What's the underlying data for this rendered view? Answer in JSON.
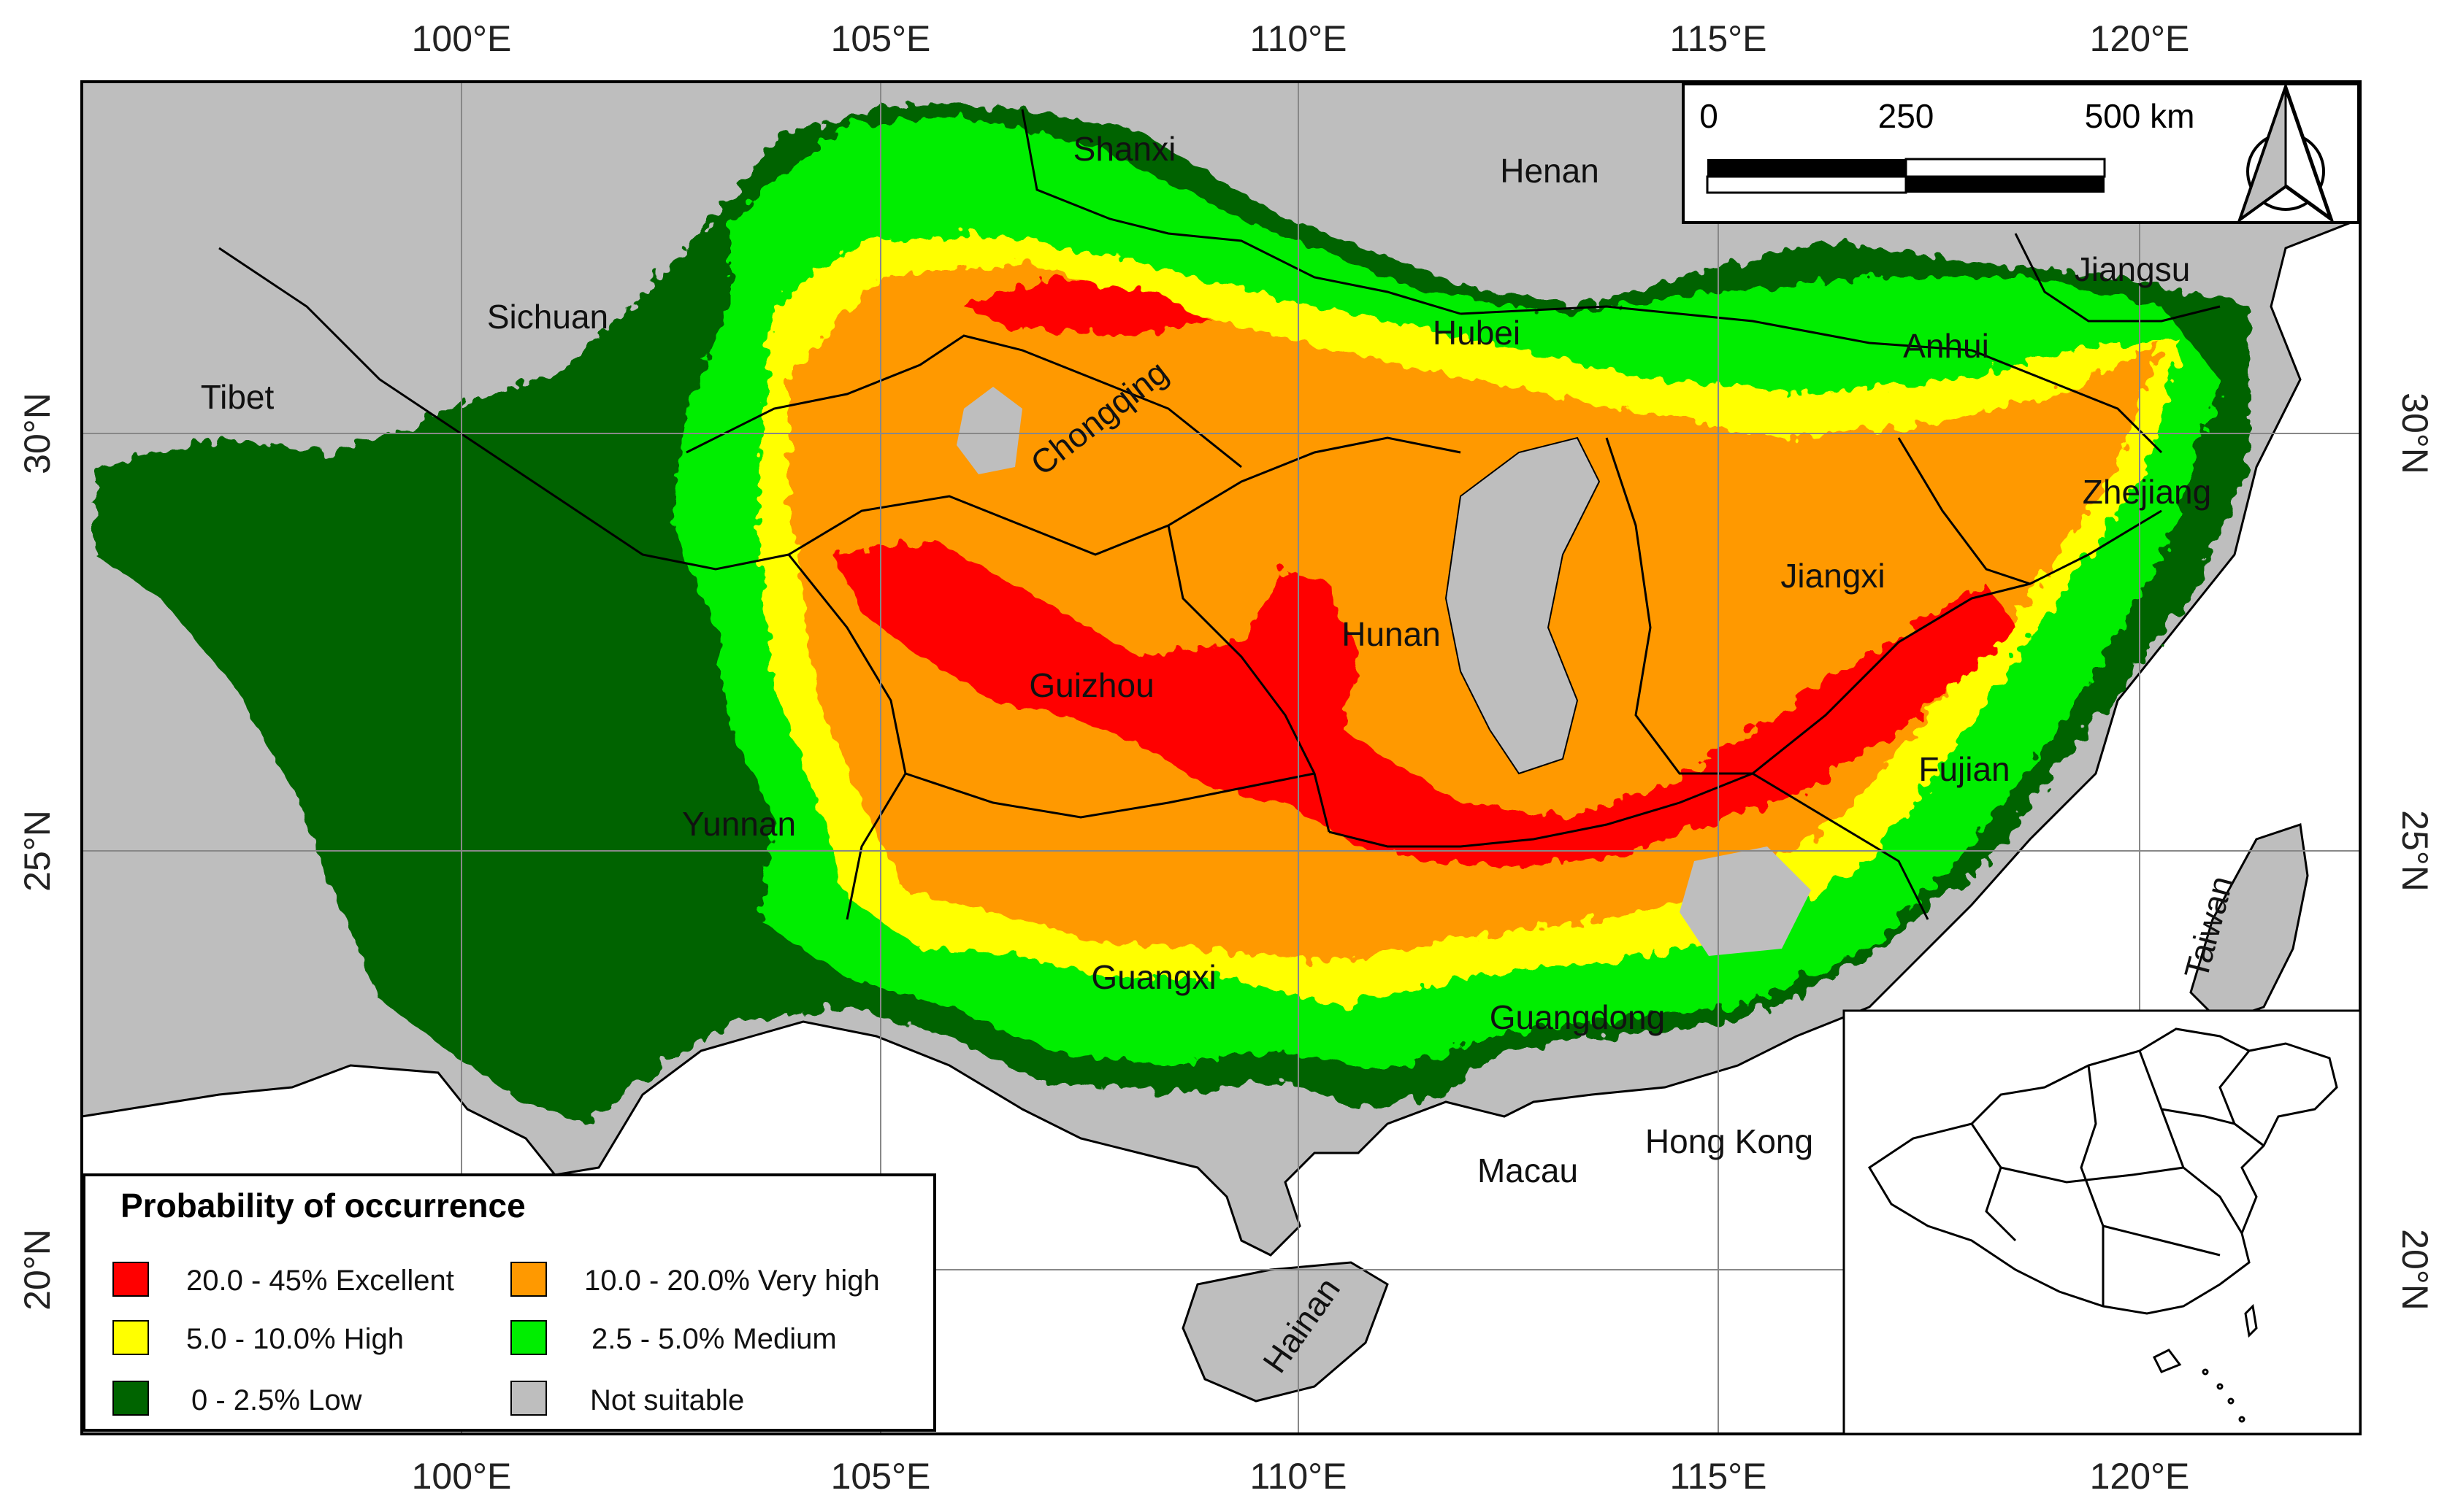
{
  "axes": {
    "top_longitudes": [
      "100°E",
      "105°E",
      "110°E",
      "115°E",
      "120°E"
    ],
    "bottom_longitudes": [
      "100°E",
      "105°E",
      "110°E",
      "115°E",
      "120°E"
    ],
    "left_latitudes": [
      "30°N",
      "25°N",
      "20°N"
    ],
    "right_latitudes": [
      "30°N",
      "25°N",
      "20°N"
    ]
  },
  "regions": {
    "shanxi": "Shanxi",
    "henan": "Henan",
    "sichuan": "Sichuan",
    "tibet": "Tibet",
    "chongqing": "Chongqing",
    "hubei": "Hubei",
    "anhui": "Anhui",
    "jiangsu": "Jiangsu",
    "zhejiang": "Zhejiang",
    "jiangxi": "Jiangxi",
    "hunan": "Hunan",
    "guizhou": "Guizhou",
    "yunnan": "Yunnan",
    "fujian": "Fujian",
    "guangxi": "Guangxi",
    "guangdong": "Guangdong",
    "taiwan": "Taiwan",
    "hong_kong": "Hong Kong",
    "macau": "Macau",
    "hainan": "Hainan"
  },
  "legend": {
    "title": "Probability of occurrence",
    "items": [
      {
        "label": "20.0 - 45% Excellent",
        "color": "#ff0000"
      },
      {
        "label": "10.0 - 20.0% Very high",
        "color": "#ff9900"
      },
      {
        "label": "5.0 - 10.0% High",
        "color": "#ffff00"
      },
      {
        "label": "2.5 - 5.0% Medium",
        "color": "#00ee00"
      },
      {
        "label": "0 - 2.5% Low",
        "color": "#006400"
      },
      {
        "label": "Not suitable",
        "color": "#bebebe"
      }
    ]
  },
  "scale_bar": {
    "labels": [
      "0",
      "250",
      "500 km"
    ]
  },
  "colors": {
    "ocean": "#ffffff",
    "not_suitable": "#bebebe",
    "low": "#006400",
    "medium": "#00ee00",
    "high": "#ffff00",
    "very_high": "#ff9900",
    "excellent": "#ff0000",
    "border": "#000000"
  },
  "inset": {
    "icon": "china-outline-map-icon"
  },
  "north_arrow": {
    "icon": "north-arrow-icon"
  }
}
